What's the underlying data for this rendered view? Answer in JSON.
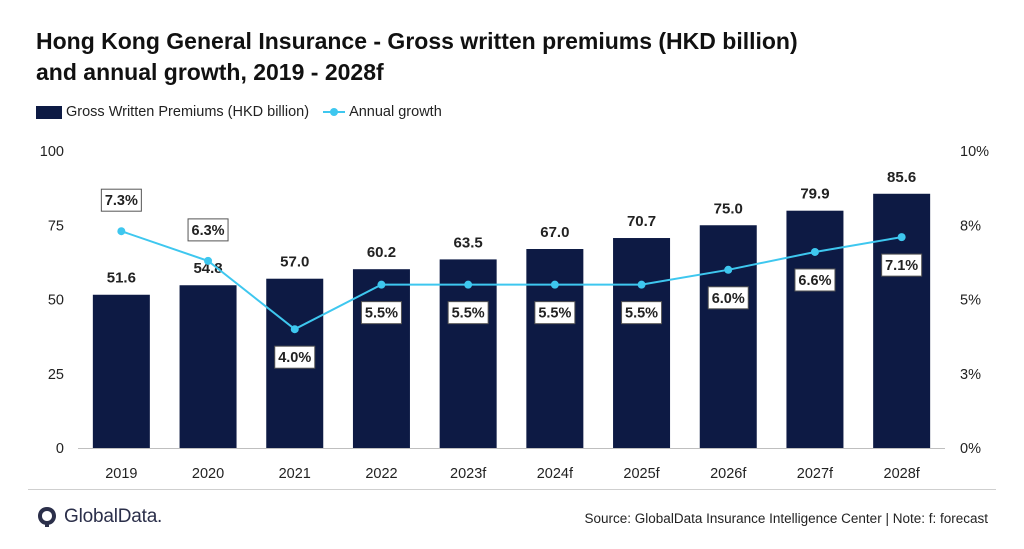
{
  "header": {
    "title_line1": "Hong Kong General Insurance - Gross written premiums (HKD billion)",
    "title_line2": "and annual growth, 2019 - 2028f"
  },
  "legend": {
    "bar_label": "Gross Written Premiums (HKD billion)",
    "line_label": "Annual growth"
  },
  "footer": {
    "logo_text": "GlobalData.",
    "source": "Source: GlobalData Insurance Intelligence Center | Note: f: forecast"
  },
  "colors": {
    "bar": "#0d1a44",
    "line": "#3ec7ef",
    "axis": "#bfbfbf"
  },
  "chart_data": {
    "type": "bar",
    "categories": [
      "2019",
      "2020",
      "2021",
      "2022",
      "2023f",
      "2024f",
      "2025f",
      "2026f",
      "2027f",
      "2028f"
    ],
    "series": [
      {
        "name": "Gross Written Premiums (HKD billion)",
        "type": "bar",
        "axis": "left",
        "values": [
          51.6,
          54.8,
          57.0,
          60.2,
          63.5,
          67.0,
          70.7,
          75.0,
          79.9,
          85.6
        ],
        "labels": [
          "51.6",
          "54.8",
          "57.0",
          "60.2",
          "63.5",
          "67.0",
          "70.7",
          "75.0",
          "79.9",
          "85.6"
        ]
      },
      {
        "name": "Annual growth",
        "type": "line",
        "axis": "right",
        "values": [
          7.3,
          6.3,
          4.0,
          5.5,
          5.5,
          5.5,
          5.5,
          6.0,
          6.6,
          7.1
        ],
        "labels": [
          "7.3%",
          "6.3%",
          "4.0%",
          "5.5%",
          "5.5%",
          "5.5%",
          "5.5%",
          "6.0%",
          "6.6%",
          "7.1%"
        ]
      }
    ],
    "left_axis": {
      "ylim": [
        0,
        100
      ],
      "ticks": [
        "0",
        "25",
        "50",
        "75",
        "100"
      ]
    },
    "right_axis": {
      "ylim": [
        0,
        10
      ],
      "ticks": [
        "0%",
        "3%",
        "5%",
        "8%",
        "10%"
      ]
    },
    "grid": false,
    "legend_position": "top-left"
  }
}
